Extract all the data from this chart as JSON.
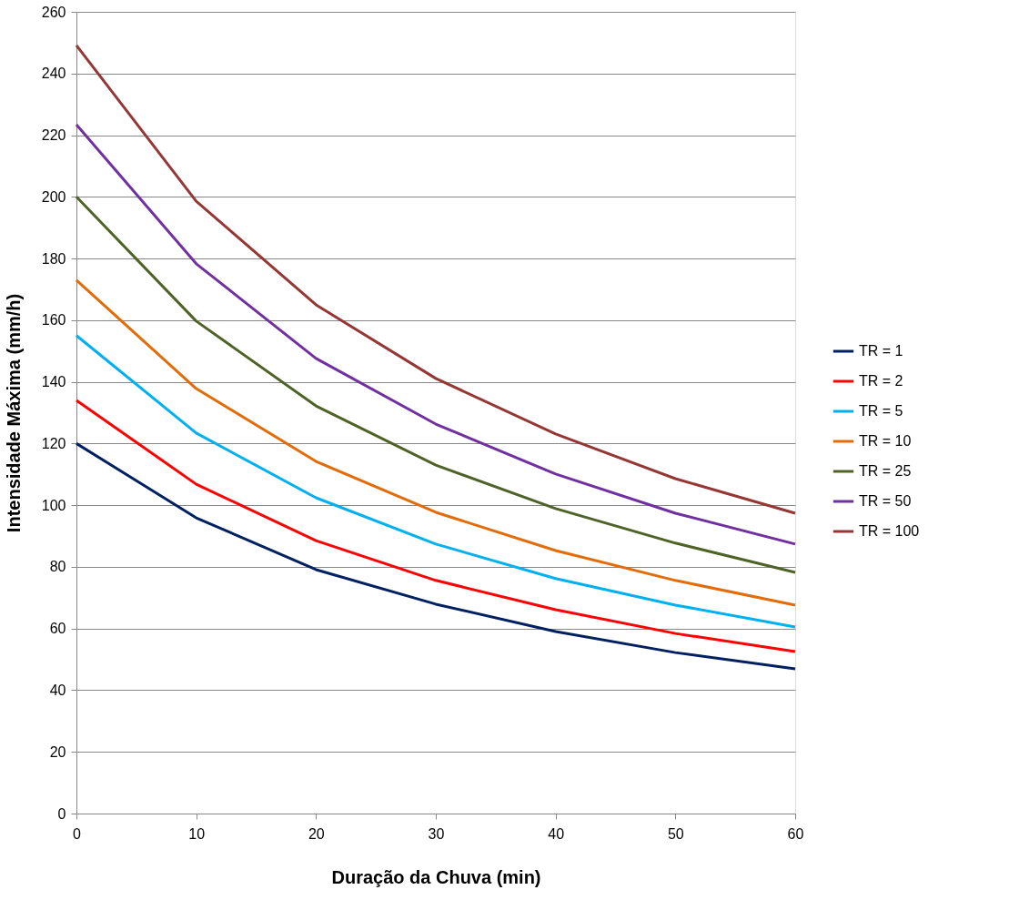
{
  "chart_data": {
    "type": "line",
    "xlabel": "Duração da Chuva (min)",
    "ylabel": "Intensidade Máxima (mm/h)",
    "x": [
      0,
      10,
      20,
      30,
      40,
      50,
      60
    ],
    "xlim": [
      0,
      60
    ],
    "xticks": [
      0,
      10,
      20,
      30,
      40,
      50,
      60
    ],
    "ylim": [
      0,
      260
    ],
    "yticks": [
      0,
      20,
      40,
      60,
      80,
      100,
      120,
      140,
      160,
      180,
      200,
      220,
      240,
      260
    ],
    "grid": "y",
    "legend": "right",
    "marker": "none",
    "line_style": "solid",
    "series": [
      {
        "name": "TR = 1",
        "color": "#002060",
        "values": [
          120,
          95.9,
          79.1,
          67.9,
          59,
          52.2,
          46.9
        ]
      },
      {
        "name": "TR = 2",
        "color": "#ff0000",
        "values": [
          134,
          106.8,
          88.5,
          75.6,
          66.1,
          58.4,
          52.5
        ]
      },
      {
        "name": "TR = 5",
        "color": "#00b0f0",
        "values": [
          155,
          123.4,
          102.4,
          87.4,
          76.2,
          67.6,
          60.5
        ]
      },
      {
        "name": "TR = 10",
        "color": "#e36c09",
        "values": [
          173,
          137.8,
          114.2,
          97.7,
          85.3,
          75.6,
          67.6
        ]
      },
      {
        "name": "TR = 25",
        "color": "#4f6228",
        "values": [
          200,
          159.7,
          132.2,
          113,
          98.9,
          87.7,
          78.2
        ]
      },
      {
        "name": "TR = 50",
        "color": "#7030a0",
        "values": [
          223.4,
          178.3,
          147.6,
          126.3,
          110.1,
          97.4,
          87.4
        ]
      },
      {
        "name": "TR = 100",
        "color": "#953735",
        "values": [
          249.1,
          198.6,
          165,
          141.1,
          123.1,
          108.6,
          97.4
        ]
      }
    ]
  }
}
